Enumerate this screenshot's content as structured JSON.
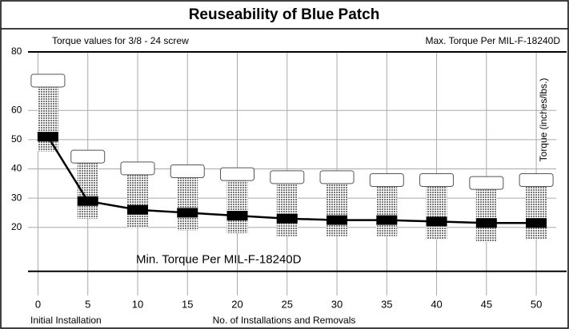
{
  "chart_data": {
    "type": "range-bar",
    "title": "Reuseability of Blue Patch",
    "subtitle": "Torque values for 3/8 - 24 screw",
    "x_label": "No. of Installations and Removals",
    "first_x_label": "Initial Installation",
    "y_label": "Torque (inches/lbs.)",
    "x": [
      1,
      5,
      10,
      15,
      20,
      25,
      30,
      35,
      40,
      45,
      50
    ],
    "values": [
      51,
      29,
      26,
      25,
      24,
      23,
      22.5,
      22.5,
      22,
      21.5,
      21.5
    ],
    "low": [
      46,
      23,
      20,
      19,
      18,
      17,
      17,
      17,
      16,
      15,
      16
    ],
    "high": [
      68,
      42,
      38,
      37,
      36,
      35,
      35,
      34,
      34,
      33,
      34
    ],
    "color": "#000000",
    "range_color": "#9a9a9a",
    "xlim": [
      -1,
      52
    ],
    "xticks": [
      0,
      5,
      10,
      15,
      20,
      25,
      30,
      35,
      40,
      45,
      50
    ],
    "ylim": [
      0,
      80
    ],
    "yticks": [
      20,
      30,
      40,
      50,
      60,
      80
    ],
    "grid": true,
    "reference_lines": [
      {
        "label": "Max. Torque Per MIL-F-18240D",
        "value": 80
      },
      {
        "label": "Min. Torque Per MIL-F-18240D",
        "value": 5
      }
    ]
  }
}
